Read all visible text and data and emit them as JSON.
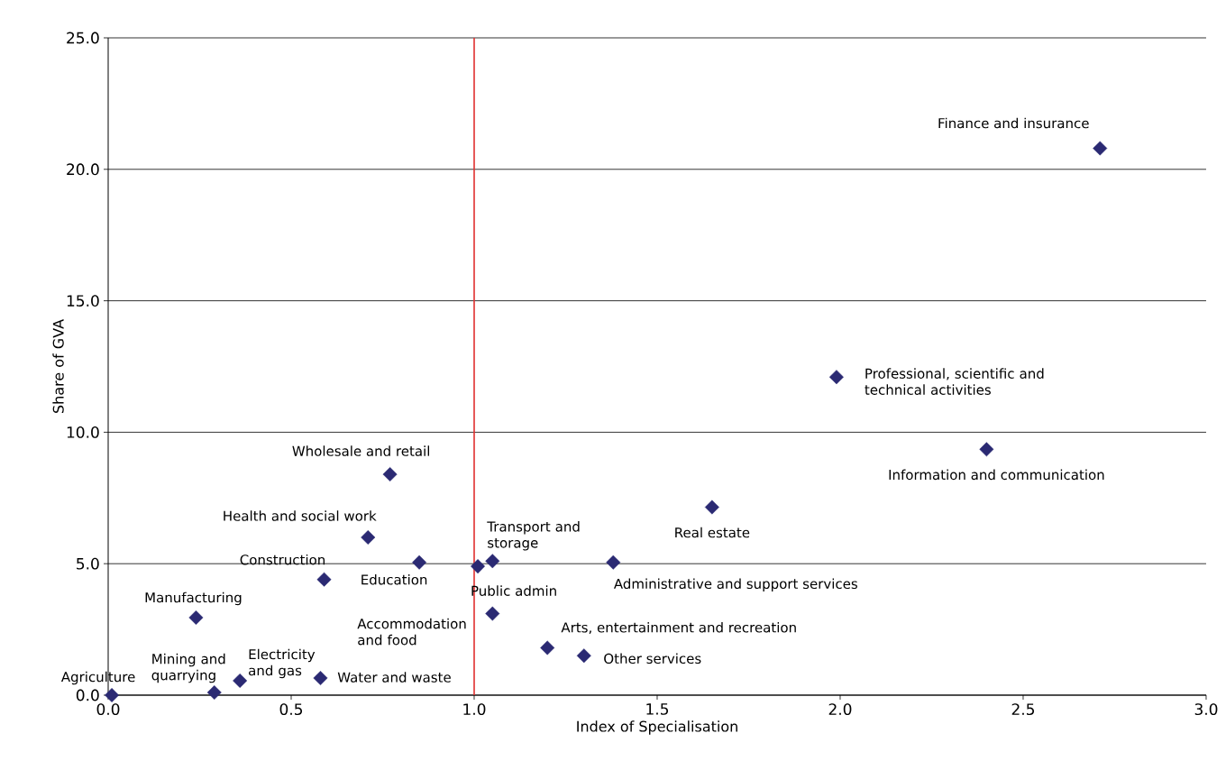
{
  "chart_data": {
    "type": "scatter",
    "xlabel": "Index of Specialisation",
    "ylabel": "Share of GVA",
    "x": [
      0.01,
      0.29,
      0.36,
      0.58,
      0.24,
      0.59,
      0.71,
      0.77,
      0.85,
      1.01,
      1.05,
      1.05,
      1.2,
      1.3,
      1.38,
      1.65,
      1.99,
      2.4,
      2.71
    ],
    "series": [
      {
        "color": "#2b2a73",
        "values": [
          0.0,
          0.1,
          0.55,
          0.65,
          2.95,
          4.4,
          6.0,
          8.4,
          5.05,
          4.9,
          5.1,
          3.1,
          1.8,
          1.5,
          5.05,
          7.15,
          12.1,
          9.35,
          20.8
        ]
      }
    ],
    "marker": "diamond",
    "grid": "y",
    "xlim": [
      0,
      3
    ],
    "ylim": [
      0,
      25
    ],
    "xticks": [
      {
        "value": 0,
        "label": "0.0"
      },
      {
        "value": 0.5,
        "label": "0.5"
      },
      {
        "value": 1,
        "label": "1.0"
      },
      {
        "value": 1.5,
        "label": "1.5"
      },
      {
        "value": 2,
        "label": "2.0"
      },
      {
        "value": 2.5,
        "label": "2.5"
      },
      {
        "value": 3,
        "label": "3.0"
      }
    ],
    "yticks": [
      {
        "value": 0,
        "label": "0.0"
      },
      {
        "value": 5,
        "label": "5.0"
      },
      {
        "value": 10,
        "label": "10.0"
      },
      {
        "value": 15,
        "label": "15.0"
      },
      {
        "value": 20,
        "label": "20.0"
      },
      {
        "value": 25,
        "label": "25.0"
      }
    ],
    "ref_lines": [
      {
        "axis": "x",
        "value": 1.0,
        "color": "#e0302f"
      }
    ],
    "annotations": [
      {
        "text": "Agriculture",
        "x": 0.01,
        "y": 0.0
      },
      {
        "text": "Mining and quarrying",
        "x": 0.29,
        "y": 0.1
      },
      {
        "text": "Electricity and gas",
        "x": 0.36,
        "y": 0.55
      },
      {
        "text": "Water and waste",
        "x": 0.58,
        "y": 0.65
      },
      {
        "text": "Manufacturing",
        "x": 0.24,
        "y": 2.95
      },
      {
        "text": "Construction",
        "x": 0.59,
        "y": 4.4
      },
      {
        "text": "Health and social work",
        "x": 0.71,
        "y": 6.0
      },
      {
        "text": "Wholesale and retail",
        "x": 0.77,
        "y": 8.4
      },
      {
        "text": "Education",
        "x": 0.85,
        "y": 5.05
      },
      {
        "text": "Public admin",
        "x": 1.01,
        "y": 4.9
      },
      {
        "text": "Transport and storage",
        "x": 1.05,
        "y": 5.1
      },
      {
        "text": "Accommodation and food",
        "x": 1.05,
        "y": 3.1
      },
      {
        "text": "Arts, entertainment and recreation",
        "x": 1.2,
        "y": 1.8
      },
      {
        "text": "Other services",
        "x": 1.3,
        "y": 1.5
      },
      {
        "text": "Administrative and support services",
        "x": 1.38,
        "y": 5.05
      },
      {
        "text": "Real estate",
        "x": 1.65,
        "y": 7.15
      },
      {
        "text": "Professional, scientific and technical activities",
        "x": 1.99,
        "y": 12.1
      },
      {
        "text": "Information and communication",
        "x": 2.4,
        "y": 9.35
      },
      {
        "text": "Finance and insurance",
        "x": 2.71,
        "y": 20.8
      }
    ]
  }
}
